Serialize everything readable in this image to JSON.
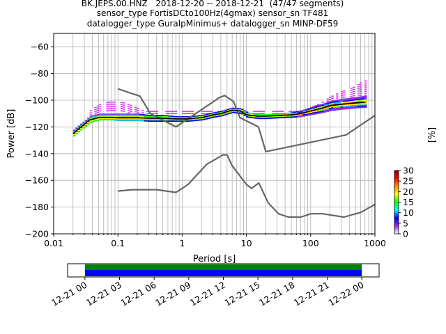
{
  "chart_data": {
    "type": "heatmap",
    "title_lines": [
      "BK.JEPS.00.HNZ   2018-12-20 -- 2018-12-21  (47/47 segments)",
      "sensor_type FortisDCto100Hz(4gmax) sensor_sn TF481",
      "datalogger_type GuralpMinimus+ datalogger_sn MINP-DF59"
    ],
    "xlabel": "Period [s]",
    "ylabel": "Power [dB]",
    "x_scale": "log",
    "xlim": [
      0.01,
      1000
    ],
    "ylim": [
      -200,
      -50
    ],
    "x_ticks": [
      {
        "value": 0.01,
        "label": "0.01"
      },
      {
        "value": 0.1,
        "label": "0.1"
      },
      {
        "value": 1,
        "label": "1"
      },
      {
        "value": 10,
        "label": "10"
      },
      {
        "value": 100,
        "label": "100"
      },
      {
        "value": 1000,
        "label": "1000"
      }
    ],
    "y_ticks": [
      -60,
      -80,
      -100,
      -120,
      -140,
      -160,
      -180,
      -200
    ],
    "grid": true,
    "colorbar": {
      "label": "[%]",
      "min": 0,
      "max": 30,
      "ticks": [
        0,
        5,
        10,
        15,
        20,
        25,
        30
      ],
      "colormap": "pqlx",
      "colors": [
        "#ffffff",
        "#a020f0",
        "#0000ff",
        "#00ffff",
        "#00ff00",
        "#ffff00",
        "#ff8c00",
        "#ff0000",
        "#8b0000"
      ]
    },
    "noise_model_low": {
      "name": "NLNM",
      "color": "#666666",
      "x": [
        0.1,
        0.17,
        0.4,
        0.8,
        1.24,
        2.4,
        4.3,
        5,
        6,
        10,
        12,
        15.6,
        21.9,
        31.6,
        45,
        70,
        101,
        154,
        328,
        600,
        1000
      ],
      "y": [
        -168,
        -167,
        -167,
        -169,
        -163,
        -148,
        -141,
        -141,
        -149,
        -163,
        -166,
        -162,
        -177,
        -185,
        -187.5,
        -187.5,
        -185,
        -185,
        -187.5,
        -184,
        -178
      ]
    },
    "noise_model_high": {
      "name": "NHNM",
      "color": "#666666",
      "x": [
        0.1,
        0.22,
        0.32,
        0.8,
        3.8,
        4.6,
        6.3,
        7.9,
        15.4,
        20,
        354.8,
        1000
      ],
      "y": [
        -91.5,
        -97,
        -110,
        -120,
        -98,
        -96.5,
        -101,
        -113,
        -120,
        -138.5,
        -126,
        -111.5
      ]
    },
    "mode_curve": {
      "name": "mode",
      "color": "#000000",
      "x": [
        0.02,
        0.025,
        0.03,
        0.035,
        0.05,
        0.08,
        0.1,
        0.15,
        0.2,
        0.3,
        0.5,
        0.8,
        1.2,
        2,
        3,
        4,
        5,
        6,
        8,
        10,
        15,
        20,
        30,
        50,
        70,
        100,
        150,
        200,
        300,
        500,
        700
      ],
      "y": [
        -125,
        -121,
        -118,
        -115,
        -113,
        -113,
        -113,
        -113,
        -113,
        -113.5,
        -113.5,
        -114,
        -114,
        -113,
        -111,
        -110,
        -108.5,
        -107.5,
        -108,
        -111,
        -112,
        -112,
        -111.5,
        -111,
        -110,
        -108,
        -106,
        -104,
        -103,
        -102,
        -101.5
      ]
    },
    "band_core": {
      "description": "",
      "x": [
        0.02,
        0.025,
        0.03,
        0.035,
        0.05,
        0.08,
        0.1,
        0.15,
        0.2,
        0.3,
        0.5,
        0.8,
        1.2,
        2,
        3,
        4,
        5,
        6,
        8,
        10,
        15,
        20,
        30,
        50,
        70,
        100,
        150,
        200,
        300,
        500,
        700
      ],
      "upper": [
        -122,
        -118,
        -115,
        -112,
        -110,
        -110,
        -110,
        -110,
        -110,
        -111,
        -111,
        -112,
        -112,
        -111,
        -109,
        -108,
        -106.5,
        -105.5,
        -106,
        -109,
        -110.5,
        -110.5,
        -110,
        -109,
        -107.5,
        -105,
        -102.5,
        -100.5,
        -99,
        -97.5,
        -96.5
      ],
      "lower": [
        -127,
        -123,
        -120,
        -117,
        -115,
        -115,
        -115.5,
        -115.5,
        -115.5,
        -116,
        -116,
        -116,
        -116,
        -115,
        -113,
        -112,
        -110.5,
        -109.5,
        -110,
        -113,
        -114,
        -114,
        -113.5,
        -113,
        -112.5,
        -111,
        -109.5,
        -108,
        -107,
        -106,
        -105.5
      ]
    },
    "band_outliers": {
      "x": [
        0.035,
        0.05,
        0.07,
        0.1,
        0.13,
        0.18,
        0.25,
        80,
        100,
        150,
        200,
        300,
        400,
        500,
        600,
        700
      ],
      "upper": [
        -108,
        -103,
        -101,
        -101,
        -102,
        -105,
        -108,
        -108,
        -105,
        -101,
        -97,
        -93,
        -91,
        -89,
        -86,
        -85
      ],
      "lower": [
        -111,
        -109,
        -108.5,
        -108.5,
        -109,
        -110,
        -111,
        -111,
        -110,
        -108,
        -107,
        -106,
        -105,
        -104,
        -103,
        -102
      ]
    },
    "time_axis": {
      "labels": [
        "12-21 00",
        "12-21 03",
        "12-21 06",
        "12-21 09",
        "12-21 12",
        "12-21 15",
        "12-21 18",
        "12-21 21",
        "12-22 00"
      ],
      "range": [
        "12-20 22:30",
        "12-22 01:30"
      ],
      "data_span": [
        "12-21 00",
        "12-22 00"
      ],
      "coverage_color": "#0000ff",
      "usage_color": "#008000"
    }
  }
}
